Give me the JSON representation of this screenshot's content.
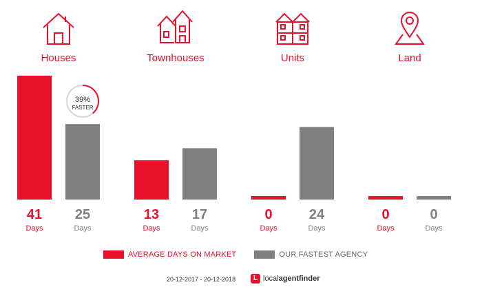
{
  "colors": {
    "average": "#e8102b",
    "agency": "#808080"
  },
  "categories": [
    {
      "label": "Houses",
      "icon": "house-icon"
    },
    {
      "label": "Townhouses",
      "icon": "townhouse-icon"
    },
    {
      "label": "Units",
      "icon": "units-icon"
    },
    {
      "label": "Land",
      "icon": "land-pin-icon"
    }
  ],
  "badge": {
    "percent": "39%",
    "text": "FASTER",
    "fraction": 0.39
  },
  "unit_label": "Days",
  "legend": {
    "average": "AVERAGE DAYS ON MARKET",
    "agency": "OUR FASTEST AGENCY"
  },
  "footer": {
    "date_range": "20-12-2017 - 20-12-2018",
    "brand_prefix": "local",
    "brand_suffix": "agentfinder"
  },
  "chart_data": {
    "type": "bar",
    "categories": [
      "Houses",
      "Townhouses",
      "Units",
      "Land"
    ],
    "series": [
      {
        "name": "AVERAGE DAYS ON MARKET",
        "values": [
          41,
          13,
          0,
          0
        ]
      },
      {
        "name": "OUR FASTEST AGENCY",
        "values": [
          25,
          17,
          24,
          0
        ]
      }
    ],
    "ylim": [
      0,
      41
    ],
    "ylabel": "",
    "xlabel": "",
    "grid": false,
    "legend_position": "bottom"
  }
}
